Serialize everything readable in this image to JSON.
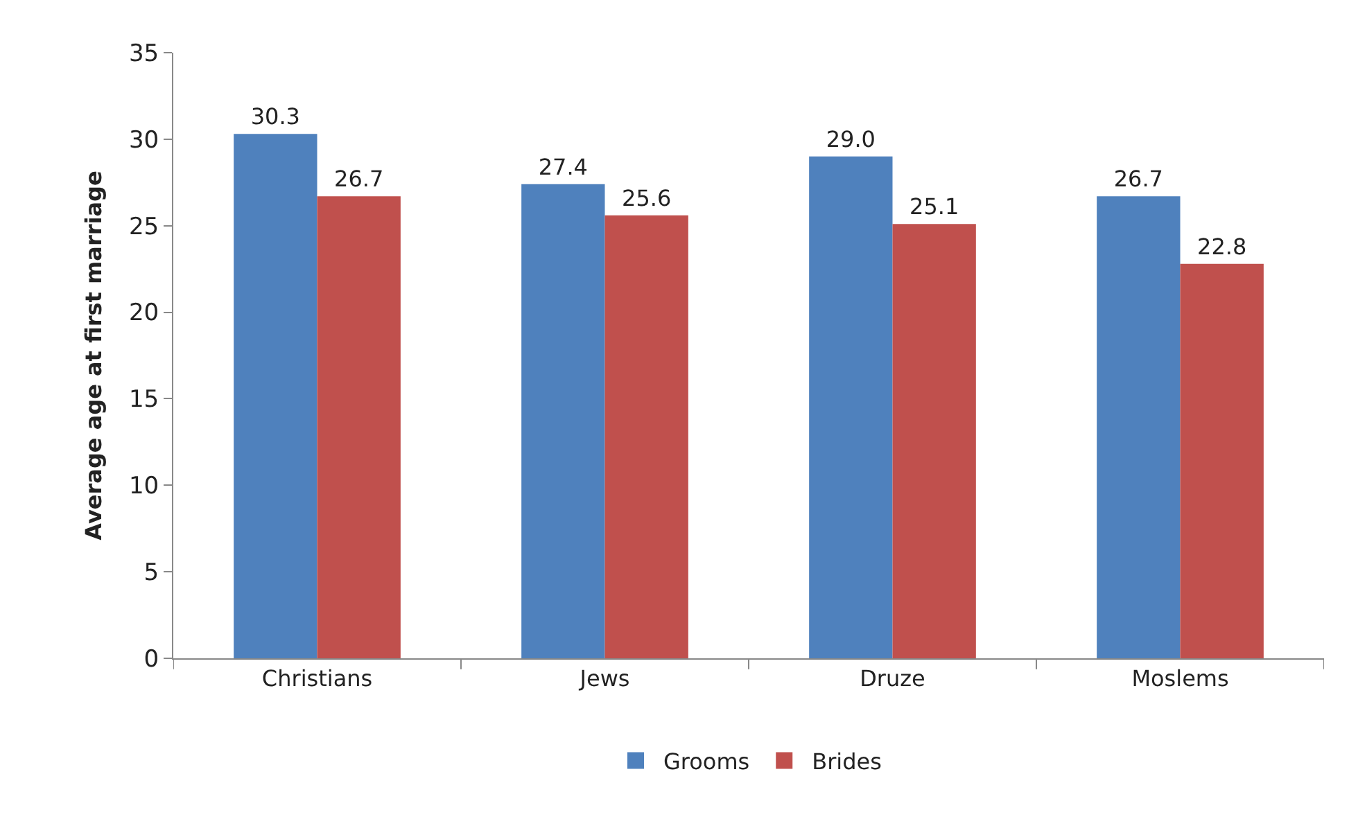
{
  "chart_data": {
    "type": "bar",
    "ylabel": "Average age at first marriage",
    "categories": [
      "Christians",
      "Jews",
      "Druze",
      "Moslems"
    ],
    "series": [
      {
        "name": "Grooms",
        "color": "#4f81bd",
        "values": [
          30.3,
          27.4,
          29.0,
          26.7
        ],
        "value_labels": [
          "30.3",
          "27.4",
          "29.0",
          "26.7"
        ]
      },
      {
        "name": "Brides",
        "color": "#c0504d",
        "values": [
          26.7,
          25.6,
          25.1,
          22.8
        ],
        "value_labels": [
          "26.7",
          "25.6",
          "25.1",
          "22.8"
        ]
      }
    ],
    "ylim": [
      0,
      35
    ],
    "yticks": [
      0,
      5,
      10,
      15,
      20,
      25,
      30,
      35
    ],
    "grid": false,
    "legend": "bottom"
  }
}
